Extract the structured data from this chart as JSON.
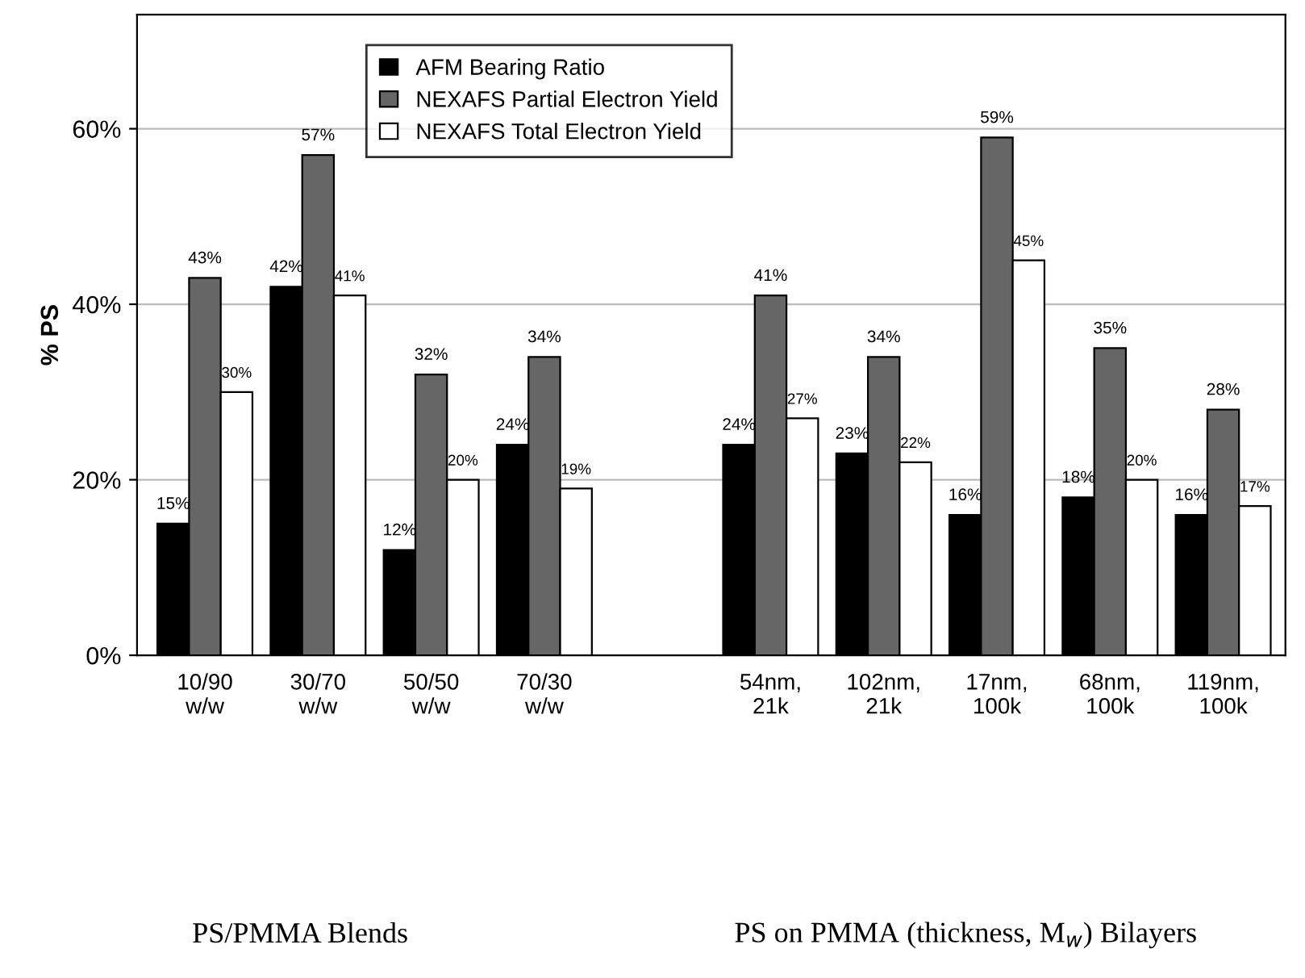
{
  "chart_data": {
    "type": "bar",
    "ylabel": "% PS",
    "categories": [
      "10/90\nw/w",
      "30/70\nw/w",
      "50/50\nw/w",
      "70/30\nw/w",
      null,
      "54nm,\n21k",
      "102nm,\n21k",
      "17nm,\n100k",
      "68nm,\n100k",
      "119nm,\n100k"
    ],
    "series": [
      {
        "name": "AFM Bearing Ratio",
        "color": "#000000",
        "values": [
          15,
          42,
          12,
          24,
          null,
          24,
          23,
          16,
          18,
          16
        ],
        "value_labels": [
          "15%",
          "42%",
          "12%",
          "24%",
          null,
          "24%",
          "23%",
          "16%",
          "18%",
          "16%"
        ]
      },
      {
        "name": "NEXAFS Partial Electron Yield",
        "color": "#666666",
        "values": [
          43,
          57,
          32,
          34,
          null,
          41,
          34,
          59,
          35,
          28
        ],
        "value_labels": [
          "43%",
          "57%",
          "32%",
          "34%",
          null,
          "41%",
          "34%",
          "59%",
          "35%",
          "28%"
        ]
      },
      {
        "name": "NEXAFS Total Electron Yield",
        "color": "#ffffff",
        "values": [
          30,
          41,
          20,
          19,
          null,
          27,
          22,
          45,
          20,
          17
        ],
        "value_labels": [
          "30%",
          "41%",
          "20%",
          "19%",
          null,
          "27%",
          "22%",
          "45%",
          "20%",
          "17%"
        ]
      }
    ],
    "ylim": [
      0,
      73
    ],
    "yticks": [
      {
        "value": 0,
        "label": "0%"
      },
      {
        "value": 20,
        "label": "20%"
      },
      {
        "value": 40,
        "label": "40%"
      },
      {
        "value": 60,
        "label": "60%"
      }
    ],
    "grid": "y",
    "legend": "top",
    "annotations": [
      "PS/PMMA Blends",
      "PS on PMMA (thickness, M$_{w}$) Bilayers"
    ]
  }
}
